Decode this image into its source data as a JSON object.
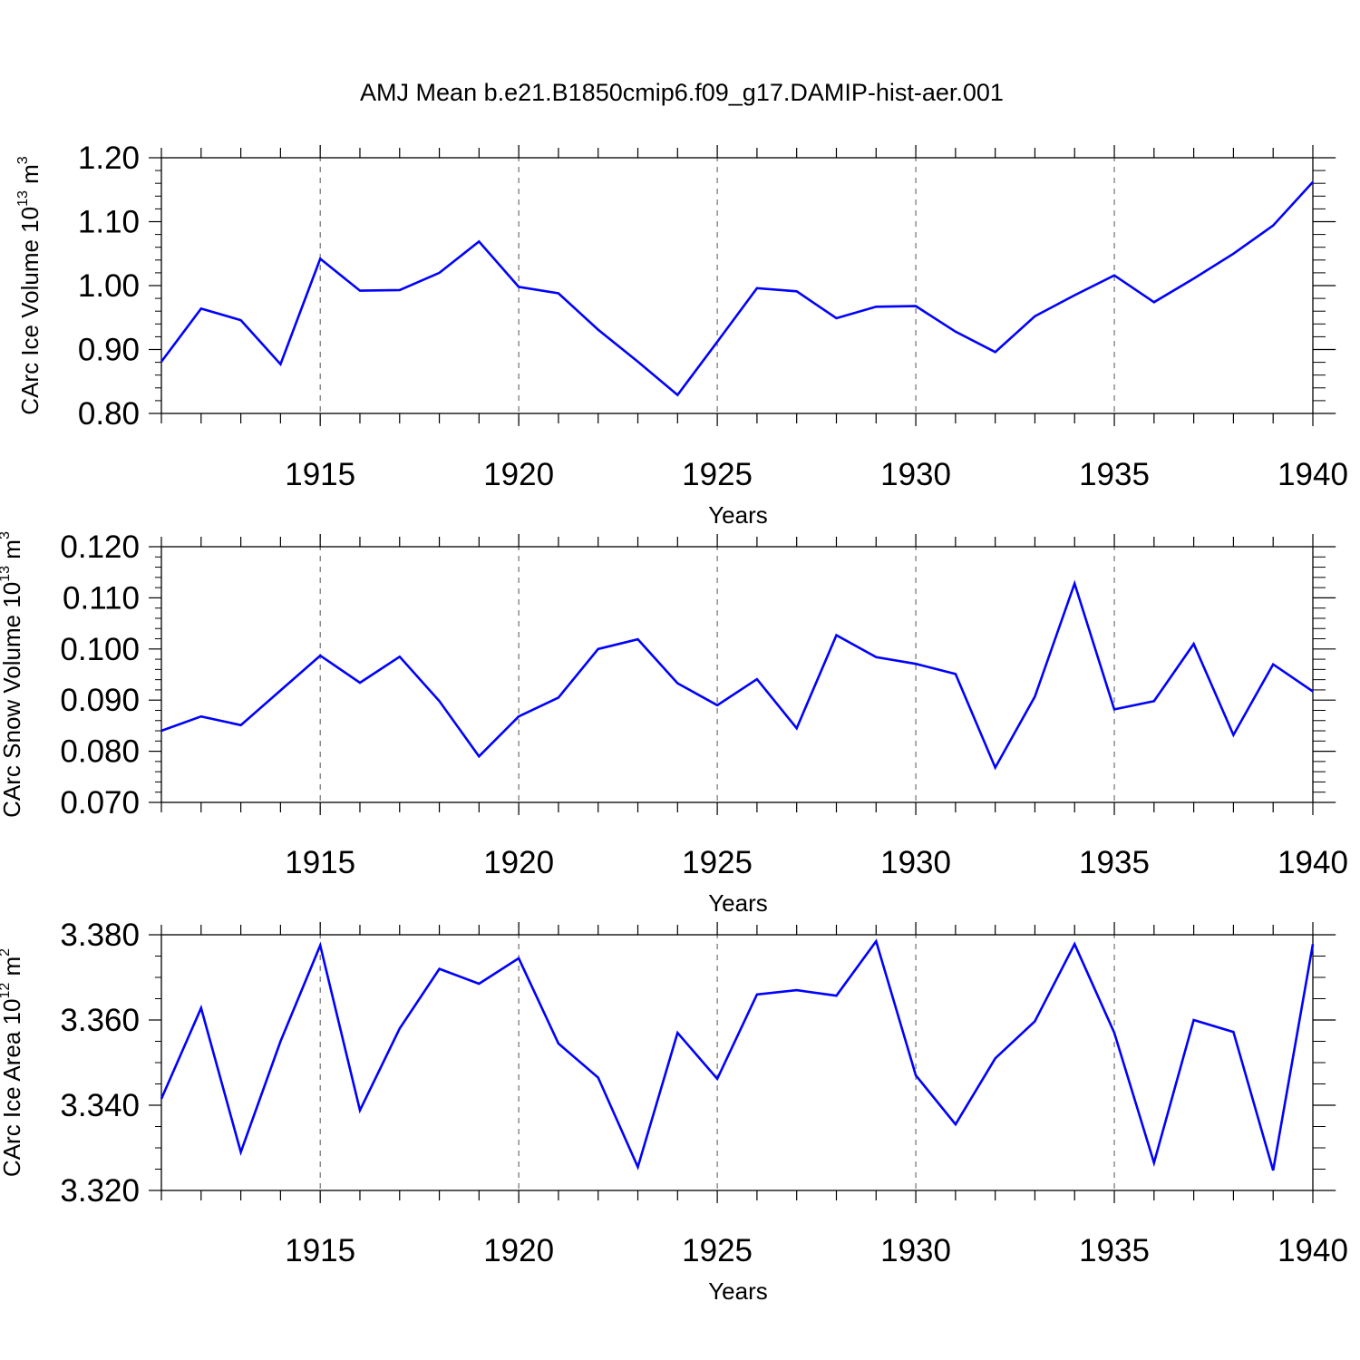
{
  "title": "AMJ Mean b.e21.B1850cmip6.f09_g17.DAMIP-hist-aer.001",
  "colors": {
    "line": "#0000ff",
    "axis": "#000000",
    "grid": "#555555"
  },
  "chart_data": [
    {
      "type": "line",
      "ylabel": {
        "main": "CArc Ice Volume 10",
        "exp": "13",
        "unit": " m",
        "unit_exp": "3"
      },
      "xlabel": "Years",
      "xlim": [
        1911,
        1940
      ],
      "ylim": [
        0.8,
        1.2
      ],
      "ytick_step": 0.1,
      "ytick_decimals": 2,
      "yminor": 5,
      "xticks": [
        1915,
        1920,
        1925,
        1930,
        1935,
        1940
      ],
      "x": [
        1911,
        1912,
        1913,
        1914,
        1915,
        1916,
        1917,
        1918,
        1919,
        1920,
        1921,
        1922,
        1923,
        1924,
        1925,
        1926,
        1927,
        1928,
        1929,
        1930,
        1931,
        1932,
        1933,
        1934,
        1935,
        1936,
        1937,
        1938,
        1939,
        1940
      ],
      "values": [
        0.881,
        0.964,
        0.946,
        0.877,
        1.042,
        0.992,
        0.993,
        1.02,
        1.069,
        0.998,
        0.988,
        0.931,
        0.881,
        0.829,
        0.912,
        0.996,
        0.991,
        0.949,
        0.967,
        0.968,
        0.928,
        0.896,
        0.952,
        0.985,
        1.016,
        0.974,
        1.011,
        1.05,
        1.094,
        1.162
      ]
    },
    {
      "type": "line",
      "ylabel": {
        "main": "CArc Snow Volume 10",
        "exp": "13",
        "unit": " m",
        "unit_exp": "3"
      },
      "xlabel": "Years",
      "xlim": [
        1911,
        1940
      ],
      "ylim": [
        0.07,
        0.12
      ],
      "ytick_step": 0.01,
      "ytick_decimals": 3,
      "yminor": 5,
      "xticks": [
        1915,
        1920,
        1925,
        1930,
        1935,
        1940
      ],
      "x": [
        1911,
        1912,
        1913,
        1914,
        1915,
        1916,
        1917,
        1918,
        1919,
        1920,
        1921,
        1922,
        1923,
        1924,
        1925,
        1926,
        1927,
        1928,
        1929,
        1930,
        1931,
        1932,
        1933,
        1934,
        1935,
        1936,
        1937,
        1938,
        1939,
        1940
      ],
      "values": [
        0.084,
        0.0868,
        0.0851,
        0.0919,
        0.0987,
        0.0934,
        0.0985,
        0.0898,
        0.079,
        0.0868,
        0.0905,
        0.1,
        0.1019,
        0.0933,
        0.089,
        0.0941,
        0.0845,
        0.1027,
        0.0984,
        0.0971,
        0.0951,
        0.0768,
        0.0907,
        0.1128,
        0.0882,
        0.0898,
        0.101,
        0.0832,
        0.097,
        0.0917
      ]
    },
    {
      "type": "line",
      "ylabel": {
        "main": "CArc Ice Area 10",
        "exp": "12",
        "unit": " m",
        "unit_exp": "2"
      },
      "xlabel": "Years",
      "xlim": [
        1911,
        1940
      ],
      "ylim": [
        3.32,
        3.38
      ],
      "ytick_step": 0.02,
      "ytick_decimals": 3,
      "yminor": 4,
      "xticks": [
        1915,
        1920,
        1925,
        1930,
        1935,
        1940
      ],
      "x": [
        1911,
        1912,
        1913,
        1914,
        1915,
        1916,
        1917,
        1918,
        1919,
        1920,
        1921,
        1922,
        1923,
        1924,
        1925,
        1926,
        1927,
        1928,
        1929,
        1930,
        1931,
        1932,
        1933,
        1934,
        1935,
        1936,
        1937,
        1938,
        1939,
        1940
      ],
      "values": [
        3.3415,
        3.3628,
        3.329,
        3.355,
        3.3775,
        3.3388,
        3.358,
        3.372,
        3.3685,
        3.3745,
        3.3545,
        3.3465,
        3.3255,
        3.357,
        3.3462,
        3.366,
        3.367,
        3.3657,
        3.3785,
        3.347,
        3.3355,
        3.351,
        3.3597,
        3.3778,
        3.357,
        3.3265,
        3.36,
        3.3572,
        3.3247,
        3.3778
      ]
    }
  ]
}
